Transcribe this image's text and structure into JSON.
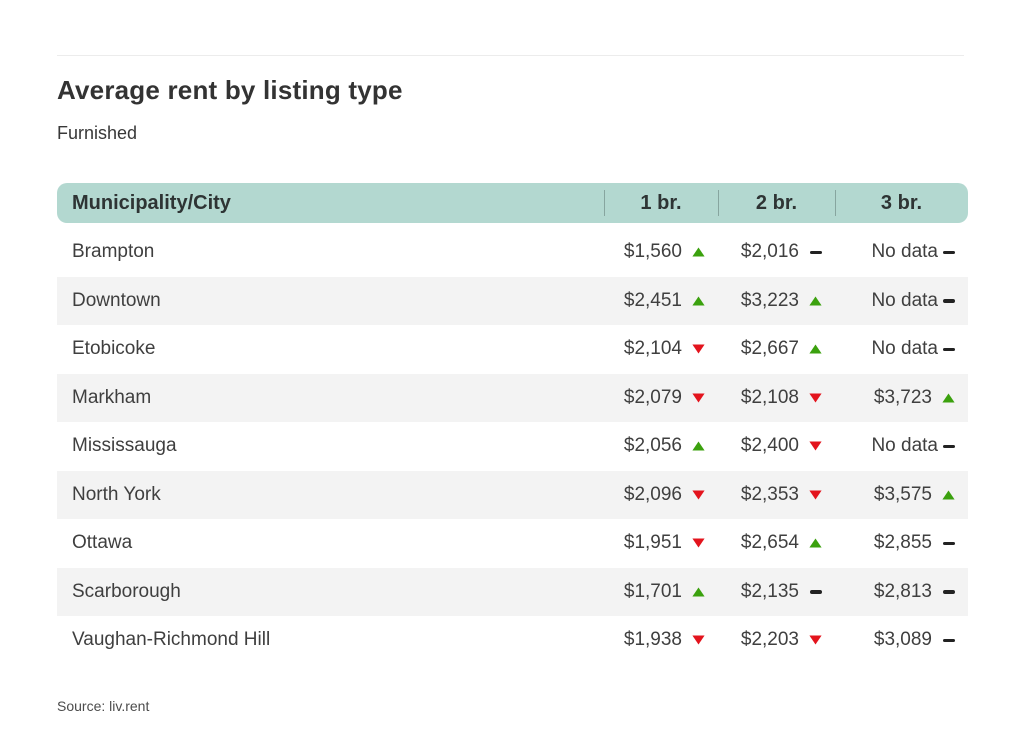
{
  "page": {
    "title": "Average rent by listing type",
    "subtitle": "Furnished",
    "source": "Source: liv.rent"
  },
  "colors": {
    "header_bg": "#b3d8d0",
    "row_alt_bg": "#f3f3f3",
    "trend_up": "#3ba10e",
    "trend_down": "#e3141d",
    "dash": "#222222"
  },
  "table": {
    "columns": [
      "Municipality/City",
      "1 br.",
      "2 br.",
      "3 br."
    ],
    "rows": [
      {
        "city": "Brampton",
        "values": [
          {
            "value": "$1,560",
            "trend": "up"
          },
          {
            "value": "$2,016",
            "trend": "flat"
          },
          {
            "value": "No data",
            "trend": "flat"
          }
        ]
      },
      {
        "city": "Downtown",
        "values": [
          {
            "value": "$2,451",
            "trend": "up"
          },
          {
            "value": "$3,223",
            "trend": "up"
          },
          {
            "value": "No data",
            "trend": "flat"
          }
        ]
      },
      {
        "city": "Etobicoke",
        "values": [
          {
            "value": "$2,104",
            "trend": "down"
          },
          {
            "value": "$2,667",
            "trend": "up"
          },
          {
            "value": "No data",
            "trend": "flat"
          }
        ]
      },
      {
        "city": "Markham",
        "values": [
          {
            "value": "$2,079",
            "trend": "down"
          },
          {
            "value": "$2,108",
            "trend": "down"
          },
          {
            "value": "$3,723",
            "trend": "up"
          }
        ]
      },
      {
        "city": "Mississauga",
        "values": [
          {
            "value": "$2,056",
            "trend": "up"
          },
          {
            "value": "$2,400",
            "trend": "down"
          },
          {
            "value": "No data",
            "trend": "flat"
          }
        ]
      },
      {
        "city": "North York",
        "values": [
          {
            "value": "$2,096",
            "trend": "down"
          },
          {
            "value": "$2,353",
            "trend": "down"
          },
          {
            "value": "$3,575",
            "trend": "up"
          }
        ]
      },
      {
        "city": "Ottawa",
        "values": [
          {
            "value": "$1,951",
            "trend": "down"
          },
          {
            "value": "$2,654",
            "trend": "up"
          },
          {
            "value": "$2,855",
            "trend": "flat"
          }
        ]
      },
      {
        "city": "Scarborough",
        "values": [
          {
            "value": "$1,701",
            "trend": "up"
          },
          {
            "value": "$2,135",
            "trend": "flat"
          },
          {
            "value": "$2,813",
            "trend": "flat"
          }
        ]
      },
      {
        "city": "Vaughan-Richmond Hill",
        "values": [
          {
            "value": "$1,938",
            "trend": "down"
          },
          {
            "value": "$2,203",
            "trend": "down"
          },
          {
            "value": "$3,089",
            "trend": "flat"
          }
        ]
      }
    ]
  },
  "chart_data": {
    "type": "table",
    "title": "Average rent by listing type",
    "subtitle": "Furnished",
    "source": "Source: liv.rent",
    "columns": [
      "Municipality/City",
      "1 br.",
      "2 br.",
      "3 br."
    ],
    "categories": [
      "Brampton",
      "Downtown",
      "Etobicoke",
      "Markham",
      "Mississauga",
      "North York",
      "Ottawa",
      "Scarborough",
      "Vaughan-Richmond Hill"
    ],
    "series": [
      {
        "name": "1 br.",
        "values": [
          1560,
          2451,
          2104,
          2079,
          2056,
          2096,
          1951,
          1701,
          1938
        ],
        "trends": [
          "up",
          "up",
          "down",
          "down",
          "up",
          "down",
          "down",
          "up",
          "down"
        ]
      },
      {
        "name": "2 br.",
        "values": [
          2016,
          3223,
          2667,
          2108,
          2400,
          2353,
          2654,
          2135,
          2203
        ],
        "trends": [
          "flat",
          "up",
          "up",
          "down",
          "down",
          "down",
          "up",
          "flat",
          "down"
        ]
      },
      {
        "name": "3 br.",
        "values": [
          null,
          null,
          null,
          3723,
          null,
          3575,
          2855,
          2813,
          3089
        ],
        "trends": [
          "flat",
          "flat",
          "flat",
          "up",
          "flat",
          "up",
          "flat",
          "flat",
          "flat"
        ]
      }
    ],
    "legend": {
      "up": "rent increased (green up arrow)",
      "down": "rent decreased (red down arrow)",
      "flat": "no change (dash)"
    }
  }
}
